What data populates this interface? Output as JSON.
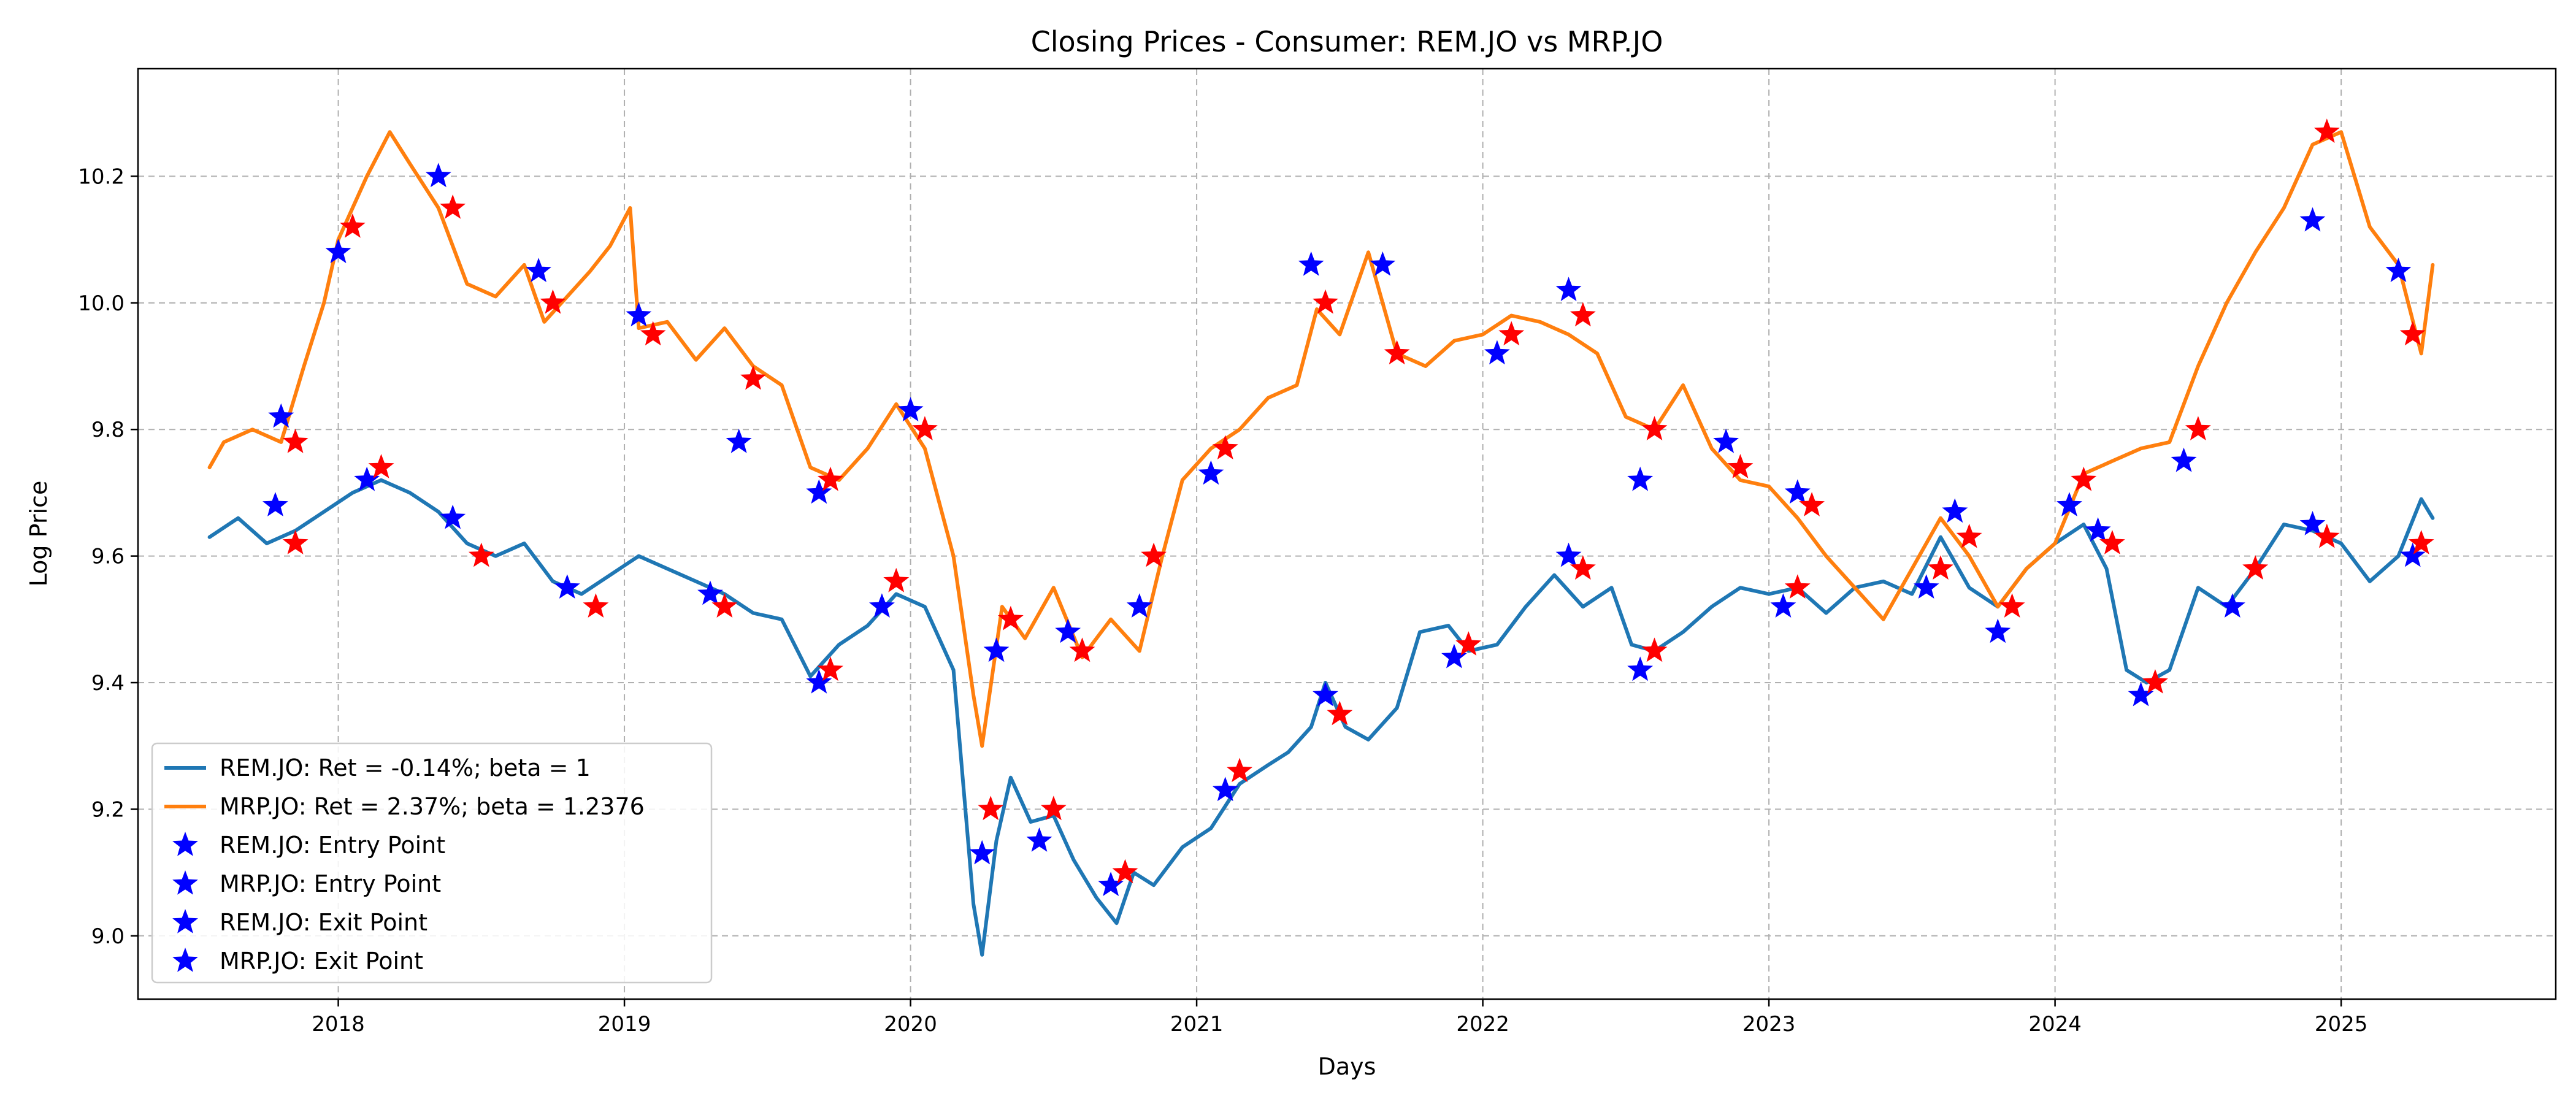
{
  "chart_data": {
    "type": "line",
    "title": "Closing Prices - Consumer: REM.JO vs MRP.JO",
    "xlabel": "Days",
    "ylabel": "Log Price",
    "xlim": [
      2017.3,
      2025.75
    ],
    "ylim": [
      8.9,
      10.37
    ],
    "x_ticks": [
      2018,
      2019,
      2020,
      2021,
      2022,
      2023,
      2024,
      2025
    ],
    "x_tick_labels": [
      "2018",
      "2019",
      "2020",
      "2021",
      "2022",
      "2023",
      "2024",
      "2025"
    ],
    "y_ticks": [
      9.0,
      9.2,
      9.4,
      9.6,
      9.8,
      10.0,
      10.2
    ],
    "y_tick_labels": [
      "9.0",
      "9.2",
      "9.4",
      "9.6",
      "9.8",
      "10.0",
      "10.2"
    ],
    "grid": true,
    "legend_position": "lower-left",
    "series": [
      {
        "name": "REM.JO: Ret = -0.14%; beta = 1",
        "color": "#1f77b4",
        "kind": "line",
        "points": [
          [
            2017.55,
            9.63
          ],
          [
            2017.65,
            9.66
          ],
          [
            2017.75,
            9.62
          ],
          [
            2017.85,
            9.64
          ],
          [
            2017.95,
            9.67
          ],
          [
            2018.05,
            9.7
          ],
          [
            2018.15,
            9.72
          ],
          [
            2018.25,
            9.7
          ],
          [
            2018.35,
            9.67
          ],
          [
            2018.45,
            9.62
          ],
          [
            2018.55,
            9.6
          ],
          [
            2018.65,
            9.62
          ],
          [
            2018.75,
            9.56
          ],
          [
            2018.85,
            9.54
          ],
          [
            2018.95,
            9.57
          ],
          [
            2019.05,
            9.6
          ],
          [
            2019.15,
            9.58
          ],
          [
            2019.25,
            9.56
          ],
          [
            2019.35,
            9.54
          ],
          [
            2019.45,
            9.51
          ],
          [
            2019.55,
            9.5
          ],
          [
            2019.65,
            9.41
          ],
          [
            2019.75,
            9.46
          ],
          [
            2019.85,
            9.49
          ],
          [
            2019.95,
            9.54
          ],
          [
            2020.05,
            9.52
          ],
          [
            2020.15,
            9.42
          ],
          [
            2020.22,
            9.05
          ],
          [
            2020.25,
            8.97
          ],
          [
            2020.3,
            9.15
          ],
          [
            2020.35,
            9.25
          ],
          [
            2020.42,
            9.18
          ],
          [
            2020.5,
            9.19
          ],
          [
            2020.57,
            9.12
          ],
          [
            2020.65,
            9.06
          ],
          [
            2020.72,
            9.02
          ],
          [
            2020.78,
            9.1
          ],
          [
            2020.85,
            9.08
          ],
          [
            2020.95,
            9.14
          ],
          [
            2021.05,
            9.17
          ],
          [
            2021.15,
            9.24
          ],
          [
            2021.25,
            9.27
          ],
          [
            2021.32,
            9.29
          ],
          [
            2021.4,
            9.33
          ],
          [
            2021.45,
            9.4
          ],
          [
            2021.52,
            9.33
          ],
          [
            2021.6,
            9.31
          ],
          [
            2021.7,
            9.36
          ],
          [
            2021.78,
            9.48
          ],
          [
            2021.88,
            9.49
          ],
          [
            2021.95,
            9.45
          ],
          [
            2022.05,
            9.46
          ],
          [
            2022.15,
            9.52
          ],
          [
            2022.25,
            9.57
          ],
          [
            2022.35,
            9.52
          ],
          [
            2022.45,
            9.55
          ],
          [
            2022.52,
            9.46
          ],
          [
            2022.6,
            9.45
          ],
          [
            2022.7,
            9.48
          ],
          [
            2022.8,
            9.52
          ],
          [
            2022.9,
            9.55
          ],
          [
            2023.0,
            9.54
          ],
          [
            2023.1,
            9.55
          ],
          [
            2023.2,
            9.51
          ],
          [
            2023.3,
            9.55
          ],
          [
            2023.4,
            9.56
          ],
          [
            2023.5,
            9.54
          ],
          [
            2023.6,
            9.63
          ],
          [
            2023.7,
            9.55
          ],
          [
            2023.8,
            9.52
          ],
          [
            2023.9,
            9.58
          ],
          [
            2024.0,
            9.62
          ],
          [
            2024.1,
            9.65
          ],
          [
            2024.18,
            9.58
          ],
          [
            2024.25,
            9.42
          ],
          [
            2024.32,
            9.4
          ],
          [
            2024.4,
            9.42
          ],
          [
            2024.5,
            9.55
          ],
          [
            2024.6,
            9.52
          ],
          [
            2024.7,
            9.58
          ],
          [
            2024.8,
            9.65
          ],
          [
            2024.9,
            9.64
          ],
          [
            2025.0,
            9.62
          ],
          [
            2025.1,
            9.56
          ],
          [
            2025.2,
            9.6
          ],
          [
            2025.28,
            9.69
          ],
          [
            2025.32,
            9.66
          ]
        ]
      },
      {
        "name": "MRP.JO: Ret = 2.37%; beta = 1.2376",
        "color": "#ff7f0e",
        "kind": "line",
        "points": [
          [
            2017.55,
            9.74
          ],
          [
            2017.6,
            9.78
          ],
          [
            2017.7,
            9.8
          ],
          [
            2017.8,
            9.78
          ],
          [
            2017.88,
            9.9
          ],
          [
            2017.95,
            10.0
          ],
          [
            2018.0,
            10.1
          ],
          [
            2018.1,
            10.2
          ],
          [
            2018.18,
            10.27
          ],
          [
            2018.25,
            10.22
          ],
          [
            2018.35,
            10.15
          ],
          [
            2018.45,
            10.03
          ],
          [
            2018.55,
            10.01
          ],
          [
            2018.65,
            10.06
          ],
          [
            2018.72,
            9.97
          ],
          [
            2018.8,
            10.01
          ],
          [
            2018.88,
            10.05
          ],
          [
            2018.95,
            10.09
          ],
          [
            2019.02,
            10.15
          ],
          [
            2019.05,
            9.96
          ],
          [
            2019.15,
            9.97
          ],
          [
            2019.25,
            9.91
          ],
          [
            2019.35,
            9.96
          ],
          [
            2019.45,
            9.9
          ],
          [
            2019.55,
            9.87
          ],
          [
            2019.65,
            9.74
          ],
          [
            2019.75,
            9.72
          ],
          [
            2019.85,
            9.77
          ],
          [
            2019.95,
            9.84
          ],
          [
            2020.05,
            9.77
          ],
          [
            2020.15,
            9.6
          ],
          [
            2020.22,
            9.38
          ],
          [
            2020.25,
            9.3
          ],
          [
            2020.32,
            9.52
          ],
          [
            2020.4,
            9.47
          ],
          [
            2020.5,
            9.55
          ],
          [
            2020.6,
            9.44
          ],
          [
            2020.7,
            9.5
          ],
          [
            2020.8,
            9.45
          ],
          [
            2020.88,
            9.6
          ],
          [
            2020.95,
            9.72
          ],
          [
            2021.05,
            9.77
          ],
          [
            2021.15,
            9.8
          ],
          [
            2021.25,
            9.85
          ],
          [
            2021.35,
            9.87
          ],
          [
            2021.42,
            9.99
          ],
          [
            2021.5,
            9.95
          ],
          [
            2021.6,
            10.08
          ],
          [
            2021.7,
            9.92
          ],
          [
            2021.8,
            9.9
          ],
          [
            2021.9,
            9.94
          ],
          [
            2022.0,
            9.95
          ],
          [
            2022.1,
            9.98
          ],
          [
            2022.2,
            9.97
          ],
          [
            2022.3,
            9.95
          ],
          [
            2022.4,
            9.92
          ],
          [
            2022.5,
            9.82
          ],
          [
            2022.6,
            9.8
          ],
          [
            2022.7,
            9.87
          ],
          [
            2022.8,
            9.77
          ],
          [
            2022.9,
            9.72
          ],
          [
            2023.0,
            9.71
          ],
          [
            2023.1,
            9.66
          ],
          [
            2023.2,
            9.6
          ],
          [
            2023.3,
            9.55
          ],
          [
            2023.4,
            9.5
          ],
          [
            2023.5,
            9.58
          ],
          [
            2023.6,
            9.66
          ],
          [
            2023.7,
            9.6
          ],
          [
            2023.8,
            9.52
          ],
          [
            2023.9,
            9.58
          ],
          [
            2024.0,
            9.62
          ],
          [
            2024.1,
            9.73
          ],
          [
            2024.2,
            9.75
          ],
          [
            2024.3,
            9.77
          ],
          [
            2024.4,
            9.78
          ],
          [
            2024.5,
            9.9
          ],
          [
            2024.6,
            10.0
          ],
          [
            2024.7,
            10.08
          ],
          [
            2024.8,
            10.15
          ],
          [
            2024.9,
            10.25
          ],
          [
            2025.0,
            10.27
          ],
          [
            2025.1,
            10.12
          ],
          [
            2025.2,
            10.06
          ],
          [
            2025.28,
            9.92
          ],
          [
            2025.32,
            10.06
          ]
        ]
      },
      {
        "name": "REM.JO: Entry Point",
        "color": "#0000ff",
        "kind": "marker",
        "points": [
          [
            2017.78,
            9.68
          ],
          [
            2018.1,
            9.72
          ],
          [
            2018.4,
            9.66
          ],
          [
            2018.8,
            9.55
          ],
          [
            2019.3,
            9.54
          ],
          [
            2019.68,
            9.4
          ],
          [
            2019.9,
            9.52
          ],
          [
            2020.25,
            9.13
          ],
          [
            2020.45,
            9.15
          ],
          [
            2020.7,
            9.08
          ],
          [
            2021.1,
            9.23
          ],
          [
            2021.45,
            9.38
          ],
          [
            2021.9,
            9.44
          ],
          [
            2022.3,
            9.6
          ],
          [
            2022.55,
            9.42
          ],
          [
            2023.05,
            9.52
          ],
          [
            2023.55,
            9.55
          ],
          [
            2023.8,
            9.48
          ],
          [
            2024.15,
            9.64
          ],
          [
            2024.3,
            9.38
          ],
          [
            2024.62,
            9.52
          ],
          [
            2024.9,
            9.65
          ],
          [
            2025.25,
            9.6
          ]
        ]
      },
      {
        "name": "MRP.JO: Entry Point",
        "color": "#0000ff",
        "kind": "marker",
        "points": [
          [
            2017.8,
            9.82
          ],
          [
            2018.0,
            10.08
          ],
          [
            2018.35,
            10.2
          ],
          [
            2018.7,
            10.05
          ],
          [
            2019.05,
            9.98
          ],
          [
            2019.4,
            9.78
          ],
          [
            2019.68,
            9.7
          ],
          [
            2020.0,
            9.83
          ],
          [
            2020.3,
            9.45
          ],
          [
            2020.55,
            9.48
          ],
          [
            2020.8,
            9.52
          ],
          [
            2021.05,
            9.73
          ],
          [
            2021.4,
            10.06
          ],
          [
            2021.65,
            10.06
          ],
          [
            2022.05,
            9.92
          ],
          [
            2022.3,
            10.02
          ],
          [
            2022.55,
            9.72
          ],
          [
            2022.85,
            9.78
          ],
          [
            2023.1,
            9.7
          ],
          [
            2023.65,
            9.67
          ],
          [
            2024.05,
            9.68
          ],
          [
            2024.45,
            9.75
          ],
          [
            2024.9,
            10.13
          ],
          [
            2025.2,
            10.05
          ]
        ]
      },
      {
        "name": "REM.JO: Exit Point",
        "color": "#ff0000",
        "kind": "marker",
        "points": [
          [
            2017.85,
            9.62
          ],
          [
            2018.15,
            9.74
          ],
          [
            2018.5,
            9.6
          ],
          [
            2018.9,
            9.52
          ],
          [
            2019.35,
            9.52
          ],
          [
            2019.72,
            9.42
          ],
          [
            2019.95,
            9.56
          ],
          [
            2020.28,
            9.2
          ],
          [
            2020.5,
            9.2
          ],
          [
            2020.75,
            9.1
          ],
          [
            2021.15,
            9.26
          ],
          [
            2021.5,
            9.35
          ],
          [
            2021.95,
            9.46
          ],
          [
            2022.35,
            9.58
          ],
          [
            2022.6,
            9.45
          ],
          [
            2023.1,
            9.55
          ],
          [
            2023.6,
            9.58
          ],
          [
            2023.85,
            9.52
          ],
          [
            2024.2,
            9.62
          ],
          [
            2024.35,
            9.4
          ],
          [
            2024.7,
            9.58
          ],
          [
            2024.95,
            9.63
          ],
          [
            2025.28,
            9.62
          ]
        ]
      },
      {
        "name": "MRP.JO: Exit Point",
        "color": "#ff0000",
        "kind": "marker",
        "points": [
          [
            2017.85,
            9.78
          ],
          [
            2018.05,
            10.12
          ],
          [
            2018.4,
            10.15
          ],
          [
            2018.75,
            10.0
          ],
          [
            2019.1,
            9.95
          ],
          [
            2019.45,
            9.88
          ],
          [
            2019.72,
            9.72
          ],
          [
            2020.05,
            9.8
          ],
          [
            2020.35,
            9.5
          ],
          [
            2020.6,
            9.45
          ],
          [
            2020.85,
            9.6
          ],
          [
            2021.1,
            9.77
          ],
          [
            2021.45,
            10.0
          ],
          [
            2021.7,
            9.92
          ],
          [
            2022.1,
            9.95
          ],
          [
            2022.35,
            9.98
          ],
          [
            2022.6,
            9.8
          ],
          [
            2022.9,
            9.74
          ],
          [
            2023.15,
            9.68
          ],
          [
            2023.7,
            9.63
          ],
          [
            2024.1,
            9.72
          ],
          [
            2024.5,
            9.8
          ],
          [
            2024.95,
            10.27
          ],
          [
            2025.25,
            9.95
          ]
        ]
      }
    ]
  }
}
